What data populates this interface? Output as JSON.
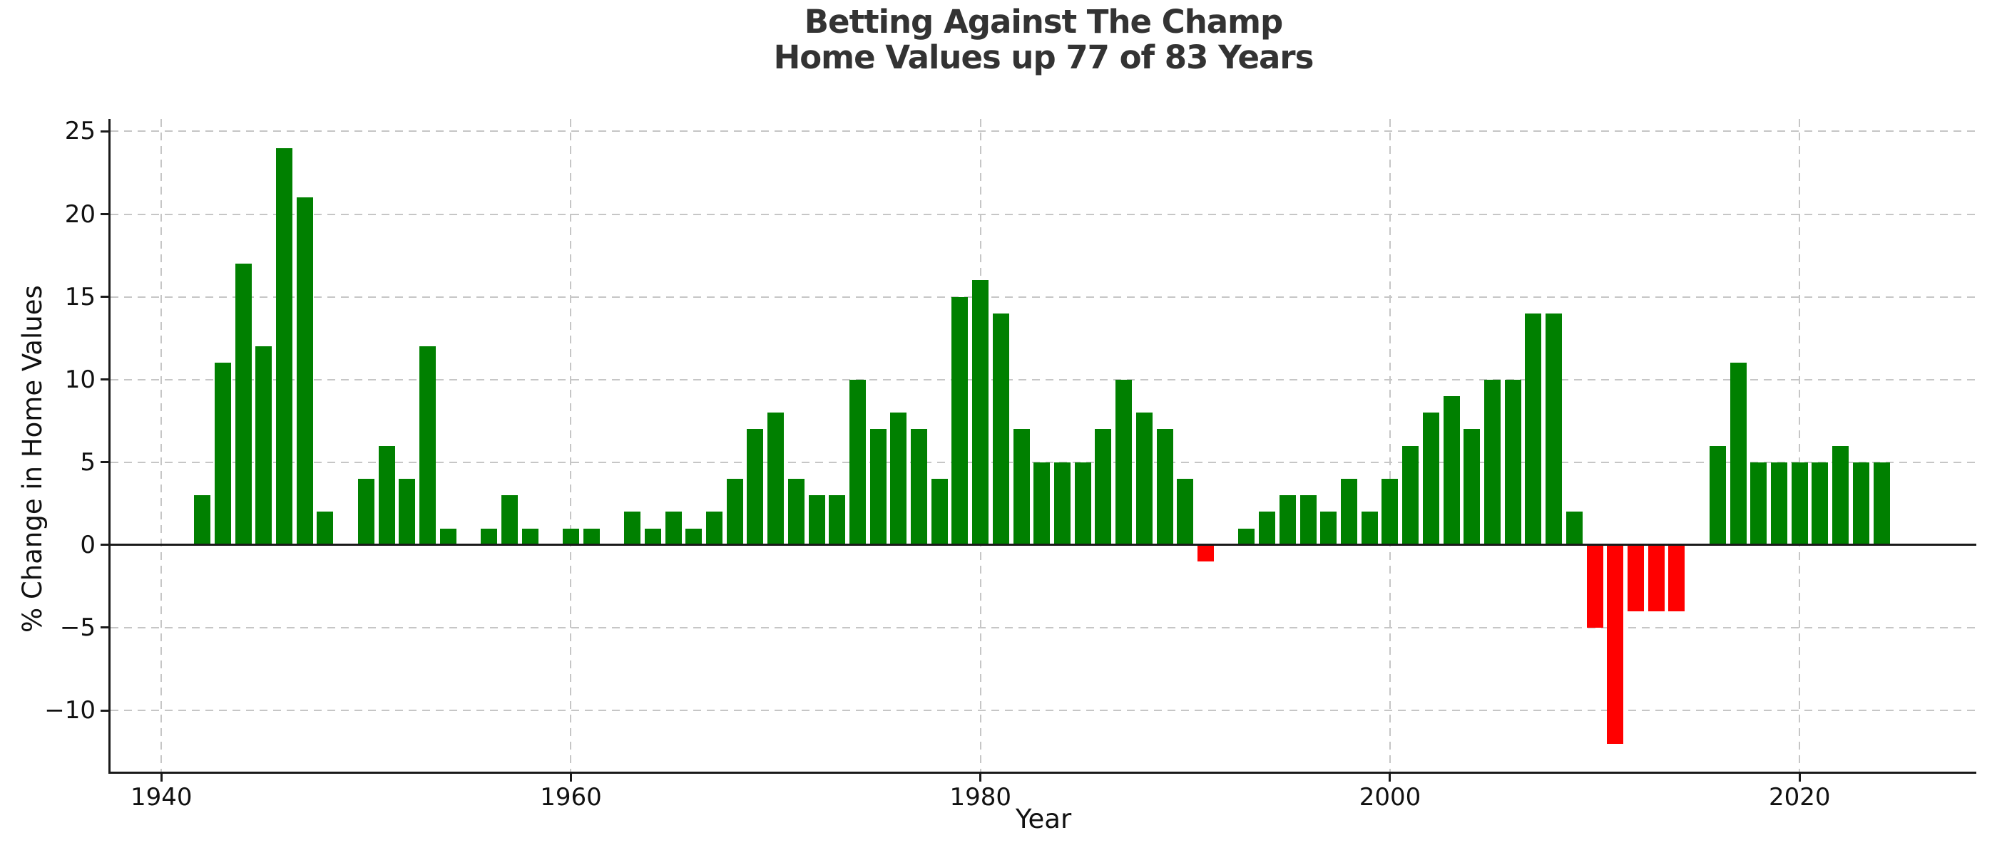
{
  "chart_data": {
    "type": "bar",
    "title": "Betting Against The Champ\nHome Values up 77 of 83 Years",
    "title_line1": "Betting Against The Champ",
    "title_line2": "Home Values up 77 of 83 Years",
    "xlabel": "Year",
    "ylabel": "% Change in Home Values",
    "x": [
      1942,
      1943,
      1944,
      1945,
      1946,
      1947,
      1948,
      1949,
      1950,
      1951,
      1952,
      1953,
      1954,
      1955,
      1956,
      1957,
      1958,
      1959,
      1960,
      1961,
      1962,
      1963,
      1964,
      1965,
      1966,
      1967,
      1968,
      1969,
      1970,
      1971,
      1972,
      1973,
      1974,
      1975,
      1976,
      1977,
      1978,
      1979,
      1980,
      1981,
      1982,
      1983,
      1984,
      1985,
      1986,
      1987,
      1988,
      1989,
      1990,
      1991,
      1992,
      1993,
      1994,
      1995,
      1996,
      1997,
      1998,
      1999,
      2000,
      2001,
      2002,
      2003,
      2004,
      2005,
      2006,
      2007,
      2008,
      2009,
      2010,
      2011,
      2012,
      2013,
      2014,
      2015,
      2016,
      2017,
      2018,
      2019,
      2020,
      2021,
      2022,
      2023,
      2024
    ],
    "values": [
      3,
      11,
      17,
      12,
      24,
      21,
      2,
      0,
      4,
      6,
      4,
      12,
      1,
      0,
      1,
      3,
      1,
      0,
      1,
      1,
      0,
      2,
      1,
      2,
      1,
      2,
      4,
      7,
      8,
      4,
      3,
      3,
      10,
      7,
      8,
      7,
      4,
      15,
      16,
      14,
      7,
      5,
      5,
      5,
      7,
      10,
      8,
      7,
      4,
      -1,
      0,
      1,
      2,
      3,
      3,
      2,
      4,
      2,
      4,
      6,
      8,
      9,
      7,
      10,
      10,
      14,
      14,
      2,
      -5,
      -12,
      -4,
      -4,
      -4,
      0,
      6,
      11,
      5,
      5,
      5,
      5,
      6,
      5,
      5
    ],
    "xticks": [
      1940,
      1960,
      1980,
      2000,
      2020
    ],
    "xtick_labels": [
      "1940",
      "1960",
      "1980",
      "2000",
      "2020"
    ],
    "yticks": [
      25,
      20,
      15,
      10,
      5,
      0,
      -5,
      -10
    ],
    "ytick_labels": [
      "25",
      "20",
      "15",
      "10",
      "5",
      "0",
      "−5",
      "−10"
    ],
    "xlim": [
      1937.52,
      2028.63
    ],
    "ylim": [
      -13.7,
      25.75
    ],
    "grid": true,
    "legend": null,
    "colors": {
      "positive": "#008000",
      "negative": "#ff0000",
      "grid": "#c6c6c6",
      "axis": "#1a1a1a",
      "title": "#333333",
      "text": "#111111"
    }
  }
}
